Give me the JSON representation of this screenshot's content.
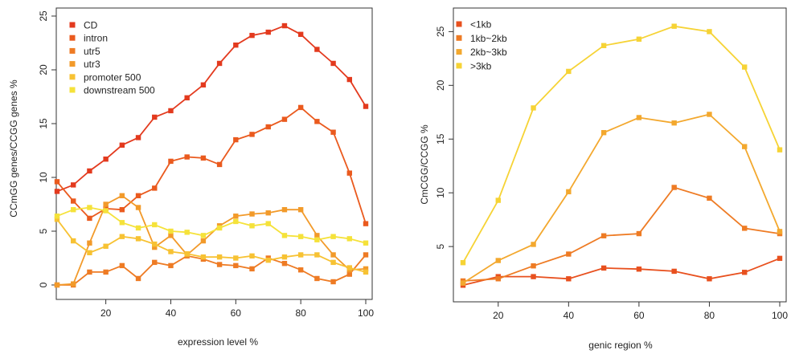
{
  "chart_data": [
    {
      "type": "line",
      "title": "",
      "xlabel": "expression level %",
      "ylabel": "CCmGG genes/CCGG genes %",
      "xlim": [
        5,
        100
      ],
      "ylim": [
        0,
        25
      ],
      "xticks": [
        20,
        40,
        60,
        80,
        100
      ],
      "yticks": [
        0,
        5,
        10,
        15,
        20,
        25
      ],
      "legend_position": "top-left",
      "x": [
        5,
        10,
        15,
        20,
        25,
        30,
        35,
        40,
        45,
        50,
        55,
        60,
        65,
        70,
        75,
        80,
        85,
        90,
        95,
        100
      ],
      "series": [
        {
          "name": "CD",
          "color": "#e33a1e",
          "values": [
            8.7,
            9.3,
            10.6,
            11.7,
            13.0,
            13.7,
            15.6,
            16.2,
            17.4,
            18.6,
            20.6,
            22.3,
            23.2,
            23.5,
            24.1,
            23.3,
            21.9,
            20.6,
            19.1,
            16.6
          ]
        },
        {
          "name": "intron",
          "color": "#ea5a1e",
          "values": [
            9.6,
            7.8,
            6.2,
            7.1,
            7.0,
            8.3,
            9.0,
            11.5,
            11.9,
            11.8,
            11.2,
            13.5,
            14.0,
            14.7,
            15.4,
            16.5,
            15.2,
            14.2,
            10.4,
            5.7
          ]
        },
        {
          "name": "utr5",
          "color": "#ee7b24",
          "values": [
            0.0,
            0.0,
            1.2,
            1.2,
            1.8,
            0.6,
            2.1,
            1.8,
            2.7,
            2.4,
            1.9,
            1.8,
            1.5,
            2.5,
            2.0,
            1.4,
            0.6,
            0.3,
            1.0,
            2.8
          ]
        },
        {
          "name": "utr3",
          "color": "#f29a2a",
          "values": [
            0.0,
            0.1,
            3.9,
            7.5,
            8.3,
            7.2,
            3.5,
            4.6,
            2.8,
            4.1,
            5.5,
            6.4,
            6.6,
            6.7,
            7.0,
            7.0,
            4.6,
            2.8,
            1.4,
            1.5
          ]
        },
        {
          "name": "promoter 500",
          "color": "#f7c233",
          "values": [
            6.1,
            4.1,
            3.0,
            3.6,
            4.5,
            4.3,
            3.8,
            3.1,
            2.9,
            2.6,
            2.6,
            2.5,
            2.7,
            2.3,
            2.6,
            2.8,
            2.8,
            2.1,
            1.6,
            1.2
          ]
        },
        {
          "name": "downstream 500",
          "color": "#f5e23a",
          "values": [
            6.4,
            7.0,
            7.2,
            6.9,
            5.8,
            5.3,
            5.6,
            5.0,
            4.9,
            4.6,
            5.3,
            5.9,
            5.5,
            5.7,
            4.6,
            4.5,
            4.2,
            4.5,
            4.3,
            3.9
          ]
        }
      ]
    },
    {
      "type": "line",
      "title": "",
      "xlabel": "genic region %",
      "ylabel": "CmCGG/CCGG %",
      "xlim": [
        10,
        100
      ],
      "ylim": [
        1.2,
        26
      ],
      "xticks": [
        20,
        40,
        60,
        80,
        100
      ],
      "yticks": [
        5,
        10,
        15,
        20,
        25
      ],
      "legend_position": "top-left",
      "x": [
        10,
        20,
        30,
        40,
        50,
        60,
        70,
        80,
        90,
        100
      ],
      "series": [
        {
          "name": "<1kb",
          "color": "#e8501e",
          "values": [
            1.4,
            2.2,
            2.2,
            2.0,
            3.0,
            2.9,
            2.7,
            2.0,
            2.6,
            3.9
          ]
        },
        {
          "name": "1kb~2kb",
          "color": "#ee7b24",
          "values": [
            1.8,
            2.0,
            3.2,
            4.3,
            6.0,
            6.2,
            10.5,
            9.5,
            6.7,
            6.2
          ]
        },
        {
          "name": "2kb~3kb",
          "color": "#f3a82e",
          "values": [
            1.6,
            3.7,
            5.2,
            10.1,
            15.6,
            17.0,
            16.5,
            17.3,
            14.3,
            6.4
          ]
        },
        {
          "name": ">3kb",
          "color": "#f6d335",
          "values": [
            3.5,
            9.3,
            17.9,
            21.3,
            23.7,
            24.3,
            25.5,
            25.0,
            21.7,
            14.0
          ]
        }
      ]
    }
  ]
}
